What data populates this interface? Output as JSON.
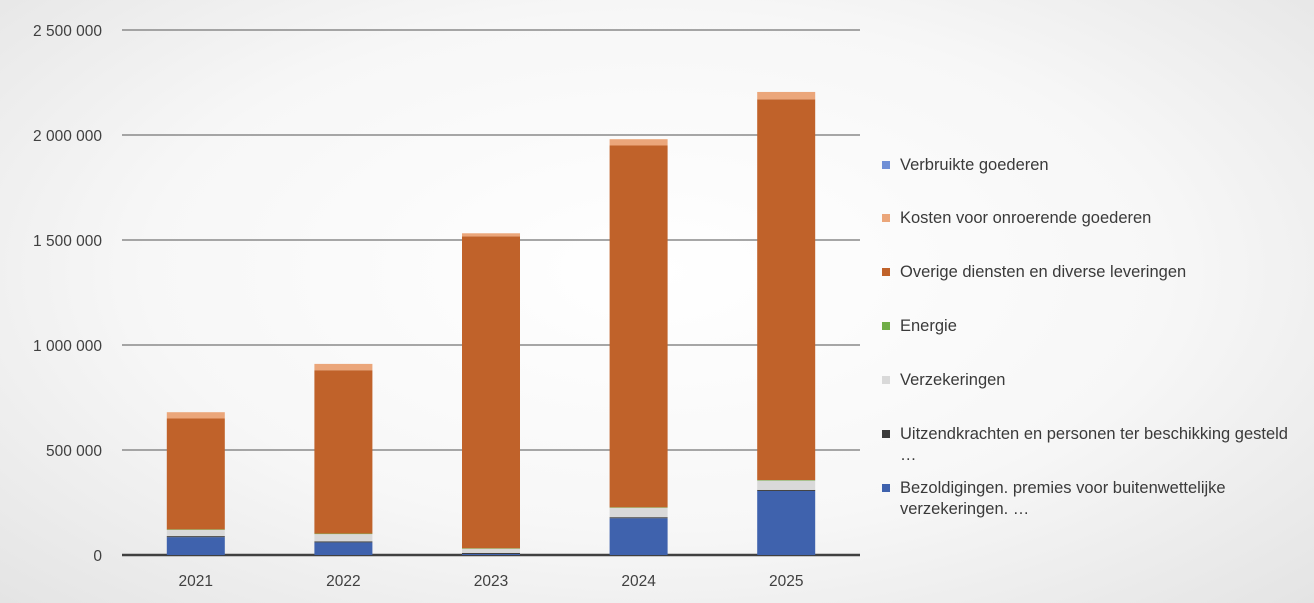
{
  "chart_data": {
    "type": "bar",
    "stacked": true,
    "categories": [
      "2021",
      "2022",
      "2023",
      "2024",
      "2025"
    ],
    "ylim": [
      0,
      2500000
    ],
    "yticks": [
      0,
      500000,
      1000000,
      1500000,
      2000000,
      2500000
    ],
    "ytick_labels": [
      "0",
      "500 000",
      "1 000 000",
      "1 500 000",
      "2 000 000",
      "2 500 000"
    ],
    "grid": true,
    "legend_position": "right",
    "series": [
      {
        "name": "Bezoldigingen. premies voor buitenwettelijke verzekeringen. …",
        "color": "#3f62ad",
        "values": [
          85000,
          60000,
          5000,
          175000,
          305000
        ]
      },
      {
        "name": "Uitzendkrachten en personen ter beschikking gesteld …",
        "color": "#3b3b3b",
        "values": [
          5000,
          5000,
          5000,
          5000,
          5000
        ]
      },
      {
        "name": "Verzekeringen",
        "color": "#d9d9d9",
        "values": [
          30000,
          35000,
          20000,
          45000,
          45000
        ]
      },
      {
        "name": "Energie",
        "color": "#70ad47",
        "values": [
          2000,
          2000,
          2000,
          2000,
          2000
        ]
      },
      {
        "name": "Overige diensten en diverse leveringen",
        "color": "#c0622a",
        "values": [
          528000,
          778000,
          1485000,
          1723000,
          1813000
        ]
      },
      {
        "name": "Kosten voor onroerende goederen",
        "color": "#eba67a",
        "values": [
          30000,
          30000,
          15000,
          30000,
          35000
        ]
      },
      {
        "name": "Verbruikte goederen",
        "color": "#6f8fd6",
        "values": [
          0,
          0,
          0,
          0,
          0
        ]
      }
    ],
    "legend_order": [
      "Verbruikte goederen",
      "Kosten voor onroerende goederen",
      "Overige diensten en diverse leveringen",
      "Energie",
      "Verzekeringen",
      "Uitzendkrachten en personen ter beschikking gesteld …",
      "Bezoldigingen. premies voor buitenwettelijke verzekeringen. …"
    ]
  }
}
